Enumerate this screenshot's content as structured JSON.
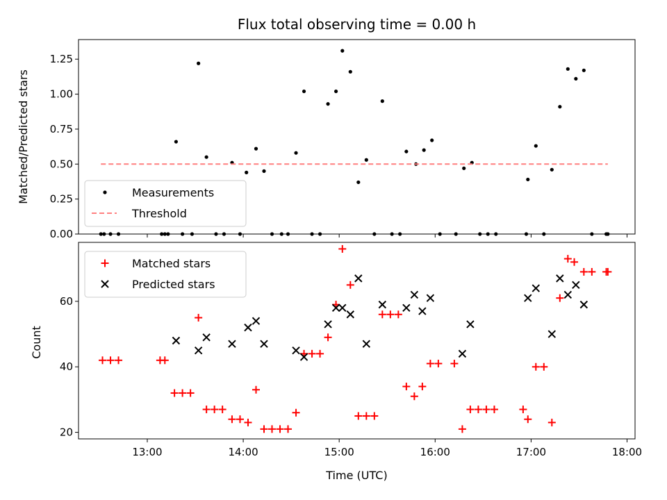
{
  "chart_data": [
    {
      "type": "scatter",
      "title": "Flux total observing time = 0.00 h",
      "xlabel": "",
      "ylabel": "Matched/Predicted stars",
      "xlim": [
        "12:17",
        "18:05"
      ],
      "ylim": [
        0,
        1.39
      ],
      "x_ticks": [
        "13:00",
        "14:00",
        "15:00",
        "16:00",
        "17:00",
        "18:00"
      ],
      "y_ticks": [
        0,
        0.25,
        0.5,
        0.75,
        1.0,
        1.25
      ],
      "y_tick_labels": [
        "0.00",
        "0.25",
        "0.50",
        "0.75",
        "1.00",
        "1.25"
      ],
      "legend": {
        "position": "lower-left"
      },
      "series": [
        {
          "name": "Measurements",
          "kind": "scatter",
          "color": "#000000",
          "points": [
            [
              "12:31",
              0
            ],
            [
              "12:33",
              0
            ],
            [
              "12:37",
              0
            ],
            [
              "12:42",
              0
            ],
            [
              "13:09",
              0
            ],
            [
              "13:11",
              0
            ],
            [
              "13:13",
              0
            ],
            [
              "13:18",
              0.66
            ],
            [
              "13:22",
              0
            ],
            [
              "13:28",
              0
            ],
            [
              "13:32",
              1.22
            ],
            [
              "13:37",
              0.55
            ],
            [
              "13:43",
              0
            ],
            [
              "13:48",
              0
            ],
            [
              "13:53",
              0.51
            ],
            [
              "13:58",
              0
            ],
            [
              "14:02",
              0.44
            ],
            [
              "14:08",
              0.61
            ],
            [
              "14:13",
              0.45
            ],
            [
              "14:18",
              0
            ],
            [
              "14:24",
              0
            ],
            [
              "14:28",
              0
            ],
            [
              "14:33",
              0.58
            ],
            [
              "14:38",
              1.02
            ],
            [
              "14:43",
              0
            ],
            [
              "14:48",
              0
            ],
            [
              "14:53",
              0.93
            ],
            [
              "14:58",
              1.02
            ],
            [
              "15:02",
              1.31
            ],
            [
              "15:07",
              1.16
            ],
            [
              "15:12",
              0.37
            ],
            [
              "15:17",
              0.53
            ],
            [
              "15:22",
              0
            ],
            [
              "15:27",
              0.95
            ],
            [
              "15:33",
              0
            ],
            [
              "15:38",
              0
            ],
            [
              "15:42",
              0.59
            ],
            [
              "15:48",
              0.5
            ],
            [
              "15:53",
              0.6
            ],
            [
              "15:58",
              0.67
            ],
            [
              "16:03",
              0
            ],
            [
              "16:13",
              0
            ],
            [
              "16:18",
              0.47
            ],
            [
              "16:23",
              0.51
            ],
            [
              "16:28",
              0
            ],
            [
              "16:33",
              0
            ],
            [
              "16:38",
              0
            ],
            [
              "16:57",
              0
            ],
            [
              "16:58",
              0.39
            ],
            [
              "17:03",
              0.63
            ],
            [
              "17:08",
              0
            ],
            [
              "17:13",
              0.46
            ],
            [
              "17:18",
              0.91
            ],
            [
              "17:23",
              1.18
            ],
            [
              "17:28",
              1.11
            ],
            [
              "17:33",
              1.17
            ],
            [
              "17:38",
              0
            ],
            [
              "17:47",
              0
            ],
            [
              "17:48",
              0
            ]
          ]
        },
        {
          "name": "Threshold",
          "kind": "line",
          "style": "dashed",
          "color": "#ff7f7f",
          "points": [
            [
              "12:31",
              0.5
            ],
            [
              "17:48",
              0.5
            ]
          ]
        }
      ]
    },
    {
      "type": "scatter",
      "title": "",
      "xlabel": "Time (UTC)",
      "ylabel": "Count",
      "xlim": [
        "12:17",
        "18:05"
      ],
      "ylim": [
        18,
        78
      ],
      "x_ticks": [
        "13:00",
        "14:00",
        "15:00",
        "16:00",
        "17:00",
        "18:00"
      ],
      "y_ticks": [
        20,
        40,
        60
      ],
      "y_tick_labels": [
        "20",
        "40",
        "60"
      ],
      "legend": {
        "position": "upper-left"
      },
      "series": [
        {
          "name": "Matched stars",
          "marker": "+",
          "color": "#ff0000",
          "points": [
            [
              "12:32",
              42
            ],
            [
              "12:37",
              42
            ],
            [
              "12:42",
              42
            ],
            [
              "13:08",
              42
            ],
            [
              "13:11",
              42
            ],
            [
              "13:17",
              32
            ],
            [
              "13:22",
              32
            ],
            [
              "13:27",
              32
            ],
            [
              "13:32",
              55
            ],
            [
              "13:37",
              27
            ],
            [
              "13:42",
              27
            ],
            [
              "13:47",
              27
            ],
            [
              "13:53",
              24
            ],
            [
              "13:58",
              24
            ],
            [
              "14:03",
              23
            ],
            [
              "14:08",
              33
            ],
            [
              "14:13",
              21
            ],
            [
              "14:18",
              21
            ],
            [
              "14:23",
              21
            ],
            [
              "14:28",
              21
            ],
            [
              "14:33",
              26
            ],
            [
              "14:38",
              44
            ],
            [
              "14:43",
              44
            ],
            [
              "14:48",
              44
            ],
            [
              "14:53",
              49
            ],
            [
              "14:58",
              59
            ],
            [
              "15:02",
              76
            ],
            [
              "15:07",
              65
            ],
            [
              "15:12",
              25
            ],
            [
              "15:17",
              25
            ],
            [
              "15:22",
              25
            ],
            [
              "15:27",
              56
            ],
            [
              "15:32",
              56
            ],
            [
              "15:37",
              56
            ],
            [
              "15:42",
              34
            ],
            [
              "15:47",
              31
            ],
            [
              "15:52",
              34
            ],
            [
              "15:57",
              41
            ],
            [
              "16:02",
              41
            ],
            [
              "16:12",
              41
            ],
            [
              "16:17",
              21
            ],
            [
              "16:22",
              27
            ],
            [
              "16:27",
              27
            ],
            [
              "16:32",
              27
            ],
            [
              "16:37",
              27
            ],
            [
              "16:55",
              27
            ],
            [
              "16:58",
              24
            ],
            [
              "17:03",
              40
            ],
            [
              "17:08",
              40
            ],
            [
              "17:13",
              23
            ],
            [
              "17:18",
              61
            ],
            [
              "17:23",
              73
            ],
            [
              "17:27",
              72
            ],
            [
              "17:33",
              69
            ],
            [
              "17:38",
              69
            ],
            [
              "17:47",
              69
            ],
            [
              "17:48",
              69
            ]
          ]
        },
        {
          "name": "Predicted stars",
          "marker": "x",
          "color": "#000000",
          "points": [
            [
              "13:18",
              48
            ],
            [
              "13:32",
              45
            ],
            [
              "13:37",
              49
            ],
            [
              "13:53",
              47
            ],
            [
              "14:03",
              52
            ],
            [
              "14:08",
              54
            ],
            [
              "14:13",
              47
            ],
            [
              "14:33",
              45
            ],
            [
              "14:38",
              43
            ],
            [
              "14:53",
              53
            ],
            [
              "14:58",
              58
            ],
            [
              "15:02",
              58
            ],
            [
              "15:07",
              56
            ],
            [
              "15:12",
              67
            ],
            [
              "15:17",
              47
            ],
            [
              "15:27",
              59
            ],
            [
              "15:42",
              58
            ],
            [
              "15:47",
              62
            ],
            [
              "15:52",
              57
            ],
            [
              "15:57",
              61
            ],
            [
              "16:17",
              44
            ],
            [
              "16:22",
              53
            ],
            [
              "16:58",
              61
            ],
            [
              "17:03",
              64
            ],
            [
              "17:13",
              50
            ],
            [
              "17:18",
              67
            ],
            [
              "17:23",
              62
            ],
            [
              "17:28",
              65
            ],
            [
              "17:33",
              59
            ]
          ]
        }
      ]
    }
  ]
}
